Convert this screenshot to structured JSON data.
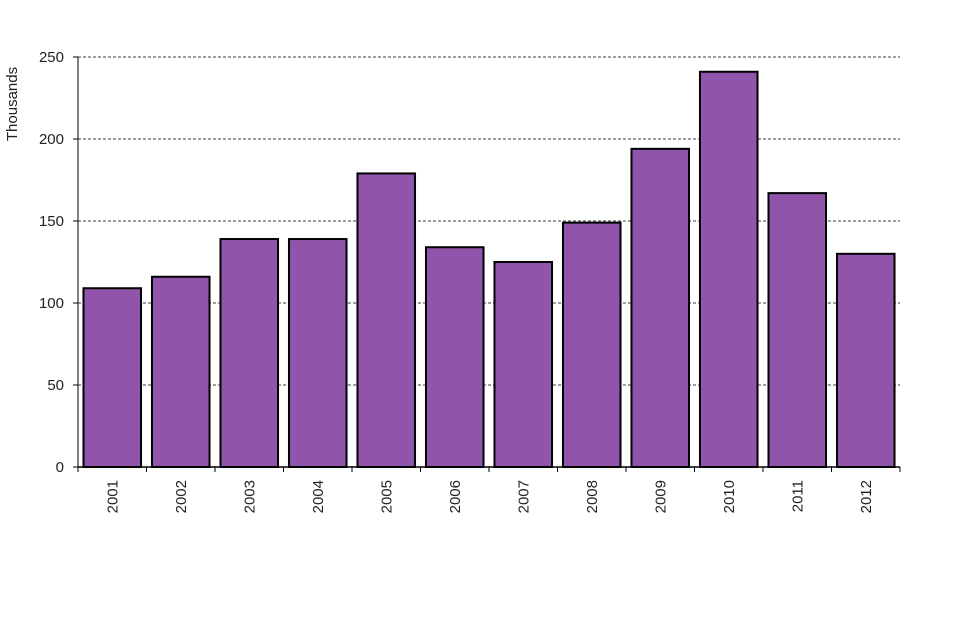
{
  "chart_data": {
    "type": "bar",
    "title": "",
    "xlabel": "",
    "ylabel": "Thousands",
    "categories": [
      "2001",
      "2002",
      "2003",
      "2004",
      "2005",
      "2006",
      "2007",
      "2008",
      "2009",
      "2010",
      "2011",
      "2012"
    ],
    "values": [
      109,
      116,
      139,
      139,
      179,
      134,
      125,
      149,
      194,
      241,
      167,
      130
    ],
    "ylim": [
      0,
      250
    ],
    "yticks": [
      "0",
      "50",
      "100",
      "150",
      "200",
      "250"
    ],
    "grid": true,
    "legend": "none",
    "colors": {
      "bar_fill": "#9055AA",
      "bar_stroke": "#000000",
      "grid": "#000000"
    }
  }
}
